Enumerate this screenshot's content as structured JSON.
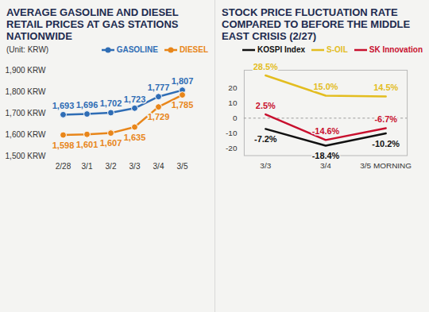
{
  "chart_data": [
    {
      "type": "line",
      "title": "AVERAGE GASOLINE AND DIESEL RETAIL PRICES AT GAS STATIONS NATIONWIDE",
      "subtitle": "(Unit: KRW)",
      "categories": [
        "2/28",
        "3/1",
        "3/2",
        "3/3",
        "3/4",
        "3/5"
      ],
      "series": [
        {
          "name": "GASOLINE",
          "color": "#2f6db5",
          "marker": "circle",
          "values": [
            1693,
            1696,
            1702,
            1723,
            1777,
            1807
          ],
          "value_labels": [
            "1,693",
            "1,696",
            "1,702",
            "1,723",
            "1,777",
            "1,807"
          ]
        },
        {
          "name": "DIESEL",
          "color": "#e8861a",
          "marker": "circle",
          "values": [
            1598,
            1601,
            1607,
            1635,
            1729,
            1785
          ],
          "value_labels": [
            "1,598",
            "1,601",
            "1,607",
            "1,635",
            "1,729",
            "1,785"
          ]
        }
      ],
      "ylim": [
        1500,
        1900
      ],
      "yticks": [
        {
          "value": 1500,
          "label": "1,500 KRW"
        },
        {
          "value": 1600,
          "label": "1,600 KRW"
        },
        {
          "value": 1700,
          "label": "1,700 KRW"
        },
        {
          "value": 1800,
          "label": "1,800 KRW"
        },
        {
          "value": 1900,
          "label": "1,900 KRW"
        }
      ],
      "data_labels": true,
      "legend": "top"
    },
    {
      "type": "line",
      "title": "STOCK PRICE FLUCTUATION RATE COMPARED TO BEFORE THE MIDDLE EAST CRISIS (2/27)",
      "categories": [
        "3/3",
        "3/4",
        "3/5 MORNING"
      ],
      "series": [
        {
          "name": "KOSPI Index",
          "color": "#111111",
          "values": [
            -7.2,
            -18.4,
            -10.2
          ],
          "value_labels": [
            "-7.2%",
            "-18.4%",
            "-10.2%"
          ]
        },
        {
          "name": "S-OIL",
          "color": "#e3bd1f",
          "values": [
            28.5,
            15.0,
            14.5
          ],
          "value_labels": [
            "28.5%",
            "15.0%",
            "14.5%"
          ]
        },
        {
          "name": "SK Innovation",
          "color": "#c8102e",
          "values": [
            2.5,
            -14.6,
            -6.7
          ],
          "value_labels": [
            "2.5%",
            "-14.6%",
            "-6.7%"
          ]
        }
      ],
      "ylim": [
        -25,
        32
      ],
      "yticks": [
        -20,
        -10,
        0,
        10,
        20
      ],
      "data_labels": true,
      "legend": "top"
    }
  ]
}
